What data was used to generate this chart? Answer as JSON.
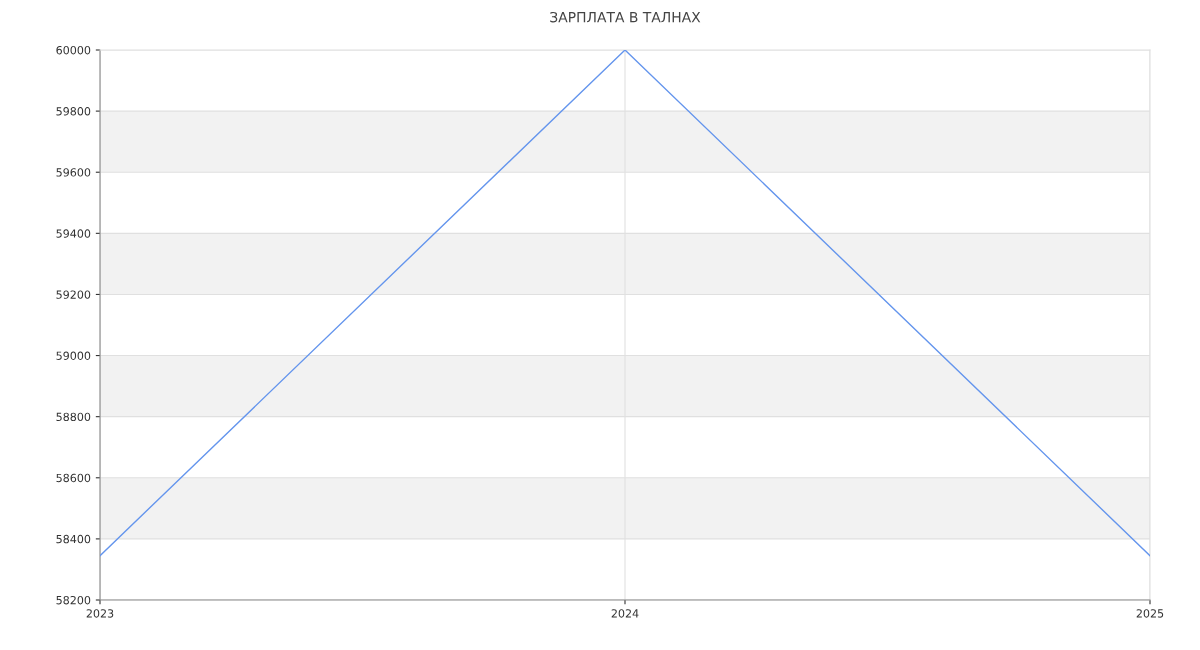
{
  "chart_data": {
    "type": "line",
    "title": "ЗАРПЛАТА В ТАЛНАХ",
    "x": [
      "2023",
      "2024",
      "2025"
    ],
    "series": [
      {
        "color": "#6495ed",
        "values": [
          58345,
          60000,
          58345
        ]
      }
    ],
    "xlim": [
      "2023",
      "2025"
    ],
    "xticks": [
      {
        "value": "2023",
        "label": "2023"
      },
      {
        "value": "2024",
        "label": "2024"
      },
      {
        "value": "2025",
        "label": "2025"
      }
    ],
    "ylim": [
      58200,
      60000
    ],
    "yticks": [
      58200,
      58400,
      58600,
      58800,
      59000,
      59200,
      59400,
      59600,
      59800,
      60000
    ],
    "grid": true,
    "marker": "none",
    "line_style": "solid"
  }
}
